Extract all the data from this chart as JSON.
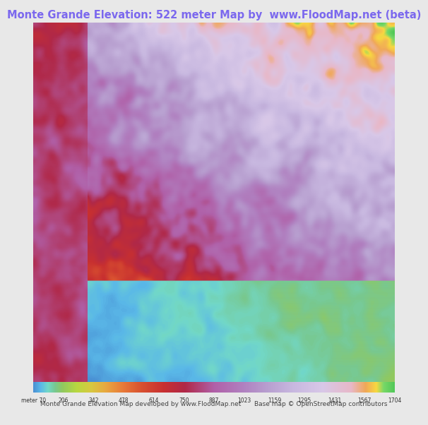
{
  "title": "Monte Grande Elevation: 522 meter Map by  www.FloodMap.net (beta)",
  "title_color": "#7B68EE",
  "title_fontsize": 10.5,
  "background_color": "#e8e8e8",
  "colorbar_labels": [
    "meter 70",
    "206",
    "342",
    "478",
    "614",
    "750",
    "887",
    "1023",
    "1159",
    "1295",
    "1431",
    "1567",
    "1704"
  ],
  "colorbar_values": [
    70,
    206,
    342,
    478,
    614,
    750,
    887,
    1023,
    1159,
    1295,
    1431,
    1567,
    1704
  ],
  "footer_left": "Monte Grande Elevation Map developed by www.FloodMap.net",
  "footer_right": "Base map © OpenStreetMap contributors",
  "footer_fontsize": 6.5,
  "map_colors": [
    [
      0,
      "#5b9bd5"
    ],
    [
      0.05,
      "#6ec6f0"
    ],
    [
      0.08,
      "#80d8c8"
    ],
    [
      0.12,
      "#7ec8a0"
    ],
    [
      0.18,
      "#a8d870"
    ],
    [
      0.22,
      "#b8e060"
    ],
    [
      0.28,
      "#c8b060"
    ],
    [
      0.32,
      "#d89870"
    ],
    [
      0.38,
      "#e07850"
    ],
    [
      0.42,
      "#d05030"
    ],
    [
      0.48,
      "#c04030"
    ],
    [
      0.52,
      "#b83040"
    ],
    [
      0.58,
      "#c060a0"
    ],
    [
      0.62,
      "#c890c8"
    ],
    [
      0.68,
      "#d0a0d0"
    ],
    [
      0.72,
      "#c8c0e0"
    ],
    [
      0.78,
      "#d0d0f0"
    ],
    [
      0.82,
      "#e0c0e8"
    ],
    [
      0.88,
      "#f0b0c0"
    ],
    [
      0.92,
      "#f8c060"
    ],
    [
      0.95,
      "#f8e040"
    ],
    [
      0.98,
      "#60c860"
    ],
    [
      1.0,
      "#40b840"
    ]
  ],
  "seed": 42
}
